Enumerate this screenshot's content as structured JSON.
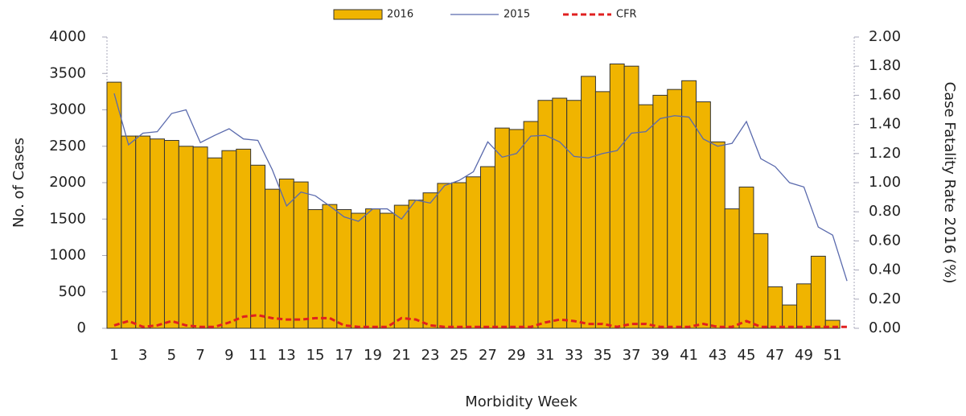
{
  "chart_data": {
    "type": "bar",
    "x_label": "Morbidity Week",
    "y_label": "No. of Cases",
    "y2_label": "Case Fatality Rate 2016 (%)",
    "categories": [
      1,
      null,
      3,
      null,
      5,
      null,
      7,
      null,
      9,
      null,
      11,
      null,
      13,
      null,
      15,
      null,
      17,
      null,
      19,
      null,
      21,
      null,
      23,
      null,
      25,
      null,
      27,
      null,
      29,
      null,
      31,
      null,
      33,
      null,
      35,
      null,
      37,
      null,
      39,
      null,
      41,
      null,
      43,
      null,
      45,
      null,
      47,
      null,
      49,
      null,
      51,
      null
    ],
    "ylim": [
      0,
      4000
    ],
    "yticks": [
      0,
      500,
      1000,
      1500,
      2000,
      2500,
      3000,
      3500,
      4000
    ],
    "y2lim": [
      0,
      2
    ],
    "y2ticks": [
      {
        "value": 0,
        "label": "0.00"
      },
      {
        "value": 0.2,
        "label": "0.20"
      },
      {
        "value": 0.4,
        "label": "0.40"
      },
      {
        "value": 0.6,
        "label": "0.60"
      },
      {
        "value": 0.8,
        "label": "0.80"
      },
      {
        "value": 1,
        "label": "1.00"
      },
      {
        "value": 1.2,
        "label": "1.20"
      },
      {
        "value": 1.4,
        "label": "1.40"
      },
      {
        "value": 1.6,
        "label": "1.60"
      },
      {
        "value": 1.8,
        "label": "1.80"
      },
      {
        "value": 2,
        "label": "2.00"
      }
    ],
    "legend": "top",
    "series": [
      {
        "name": "2016",
        "type": "bar",
        "color": "#f0b400",
        "values": [
          3380,
          2640,
          2640,
          2600,
          2580,
          2500,
          2490,
          2340,
          2440,
          2460,
          2240,
          1910,
          2050,
          2010,
          1630,
          1700,
          1630,
          1580,
          1640,
          1580,
          1690,
          1760,
          1860,
          1990,
          2000,
          2080,
          2220,
          2750,
          2730,
          2840,
          3130,
          3160,
          3130,
          3460,
          3250,
          3630,
          3600,
          3070,
          3200,
          3280,
          3400,
          3110,
          2560,
          1640,
          1940,
          1300,
          570,
          320,
          610,
          990,
          110,
          null
        ]
      },
      {
        "name": "2015",
        "type": "line",
        "color": "#5a6aad",
        "values": [
          3226,
          2520,
          2680,
          2700,
          2950,
          3000,
          2550,
          2650,
          2740,
          2600,
          2580,
          2180,
          1680,
          1870,
          1820,
          1680,
          1530,
          1470,
          1640,
          1640,
          1500,
          1760,
          1720,
          1960,
          2030,
          2150,
          2560,
          2350,
          2400,
          2640,
          2650,
          2560,
          2360,
          2340,
          2400,
          2440,
          2680,
          2700,
          2880,
          2920,
          2900,
          2600,
          2500,
          2540,
          2840,
          2330,
          2220,
          2000,
          1940,
          1390,
          1280,
          650
        ]
      },
      {
        "name": "CFR",
        "type": "line",
        "dashed": true,
        "axis": "y2",
        "color": "#e02020",
        "values": [
          0.02,
          0.05,
          0.01,
          0.02,
          0.05,
          0.02,
          0.01,
          0.01,
          0.04,
          0.08,
          0.09,
          0.07,
          0.06,
          0.06,
          0.07,
          0.07,
          0.02,
          0.01,
          0.01,
          0.01,
          0.07,
          0.06,
          0.02,
          0.01,
          0.01,
          0.01,
          0.01,
          0.01,
          0.01,
          0.01,
          0.04,
          0.06,
          0.05,
          0.03,
          0.03,
          0.01,
          0.03,
          0.03,
          0.01,
          0.01,
          0.01,
          0.03,
          0.01,
          0.01,
          0.05,
          0.01,
          0.01,
          0.01,
          0.01,
          0.01,
          0.01,
          0.01
        ]
      }
    ]
  }
}
